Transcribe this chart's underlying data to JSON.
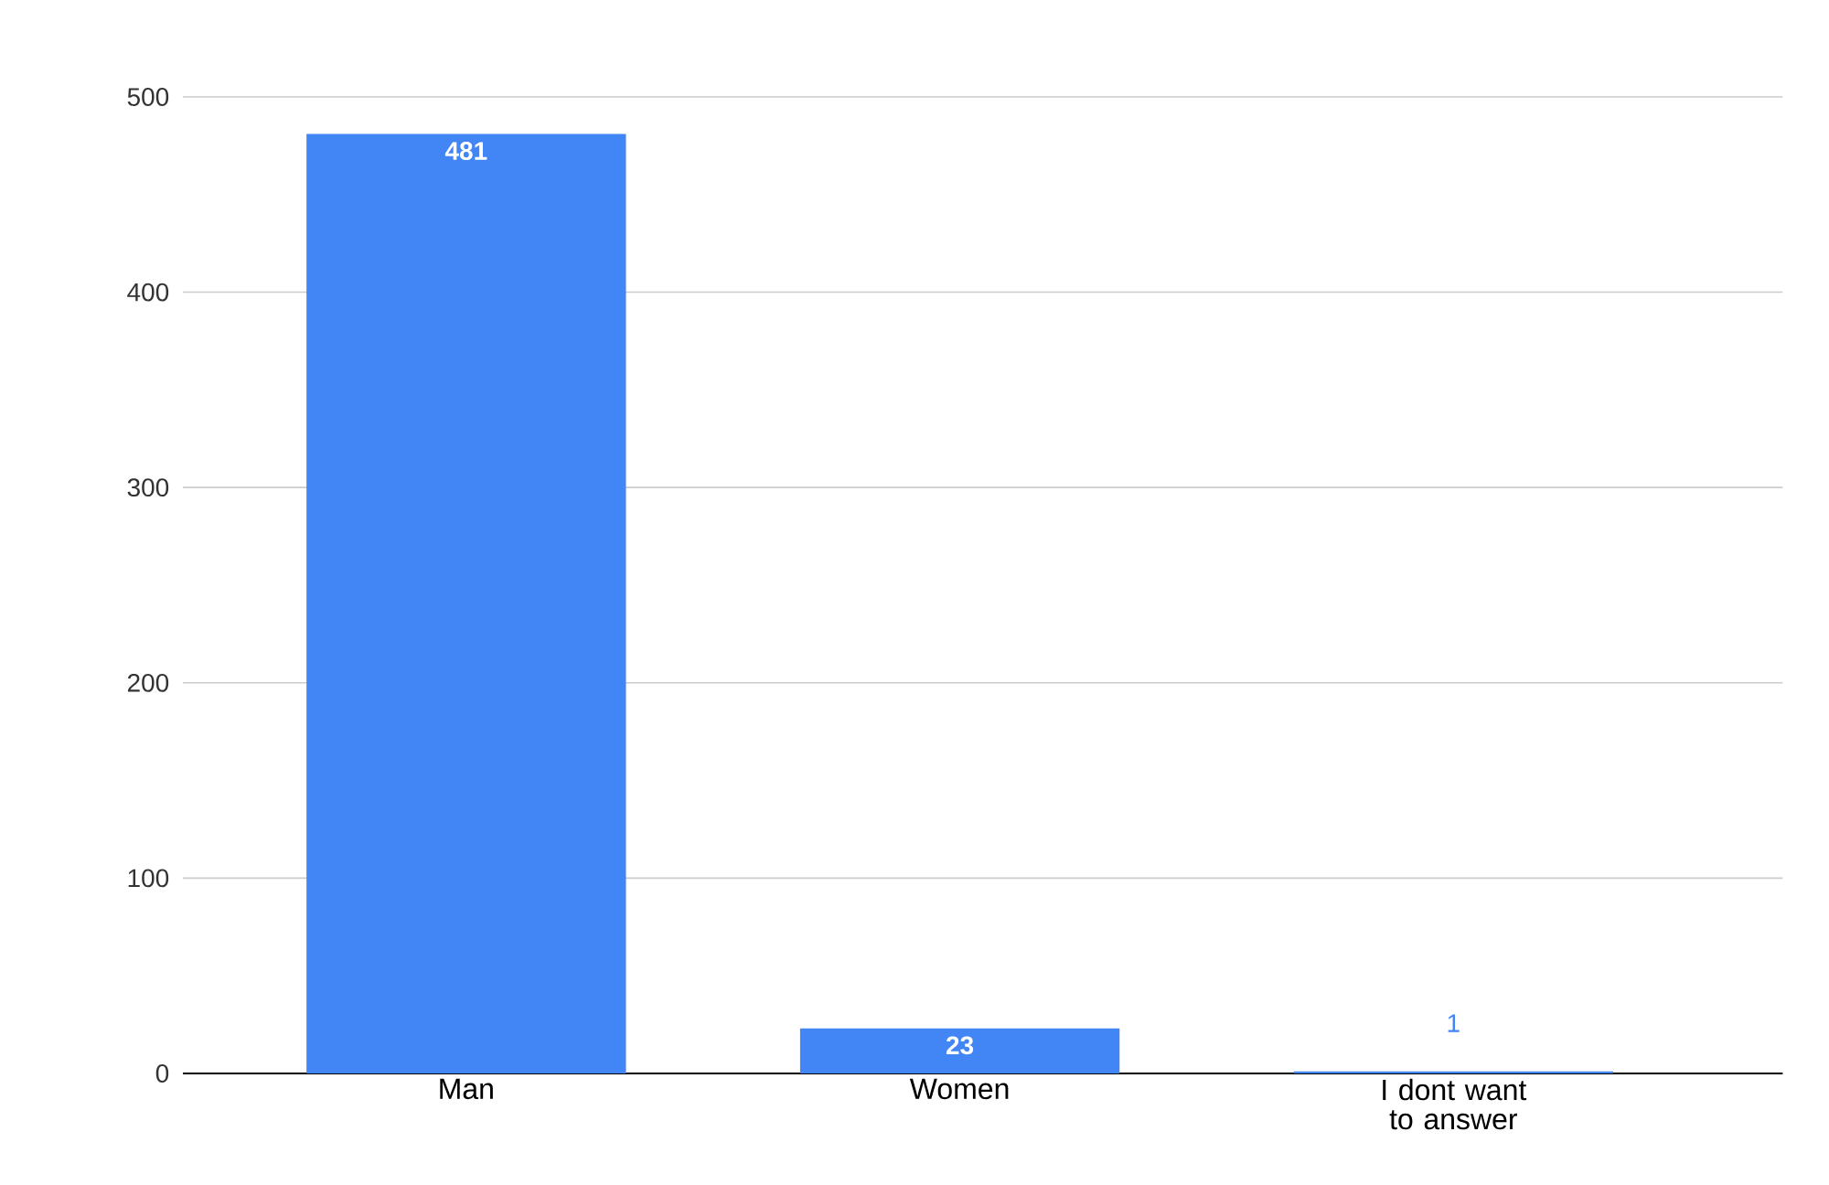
{
  "chart_data": {
    "type": "bar",
    "categories": [
      "Man",
      "Women",
      "I dont want to answer"
    ],
    "values": [
      481,
      23,
      1
    ],
    "color": "#4285f4",
    "ylim": [
      0,
      500
    ],
    "yticks": [
      0,
      100,
      200,
      300,
      400,
      500
    ],
    "grid": "y",
    "data_labels": true
  }
}
